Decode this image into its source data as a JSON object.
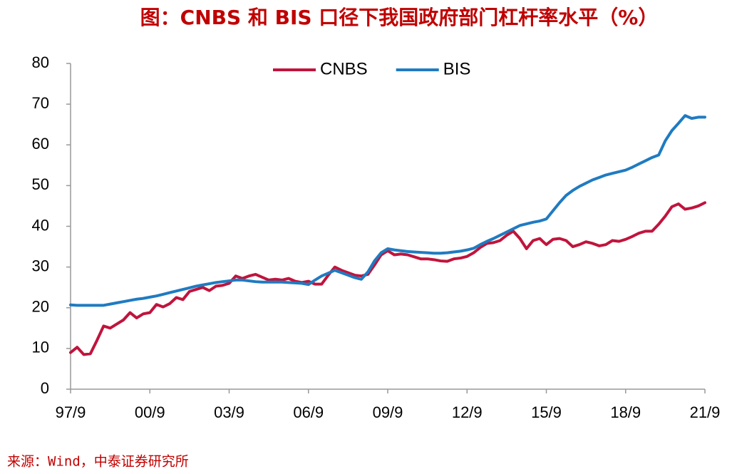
{
  "chart_data": {
    "type": "line",
    "title": "图：CNBS 和 BIS 口径下我国政府部门杠杆率水平（%）",
    "source": "来源：Wind，中泰证券研究所",
    "categories": [
      "97/9",
      null,
      null,
      null,
      null,
      null,
      null,
      null,
      null,
      null,
      null,
      null,
      "00/9",
      null,
      null,
      null,
      null,
      null,
      null,
      null,
      null,
      null,
      null,
      null,
      "03/9",
      null,
      null,
      null,
      null,
      null,
      null,
      null,
      null,
      null,
      null,
      null,
      "06/9",
      null,
      null,
      null,
      null,
      null,
      null,
      null,
      null,
      null,
      null,
      null,
      "09/9",
      null,
      null,
      null,
      null,
      null,
      null,
      null,
      null,
      null,
      null,
      null,
      "12/9",
      null,
      null,
      null,
      null,
      null,
      null,
      null,
      null,
      null,
      null,
      null,
      "15/9",
      null,
      null,
      null,
      null,
      null,
      null,
      null,
      null,
      null,
      null,
      null,
      "18/9",
      null,
      null,
      null,
      null,
      null,
      null,
      null,
      null,
      null,
      null,
      null,
      "21/9"
    ],
    "series": [
      {
        "name": "CNBS",
        "color": "#c0143c",
        "values": [
          9.0,
          10.3,
          8.5,
          8.7,
          12.0,
          15.5,
          15.0,
          16.0,
          17.0,
          18.8,
          17.5,
          18.5,
          18.8,
          20.8,
          20.2,
          21.0,
          22.5,
          22.0,
          24.0,
          24.5,
          25.0,
          24.2,
          25.3,
          25.5,
          26.0,
          27.8,
          27.2,
          27.8,
          28.2,
          27.5,
          26.8,
          27.0,
          26.8,
          27.2,
          26.5,
          26.2,
          26.5,
          25.8,
          25.8,
          28.0,
          30.0,
          29.2,
          28.6,
          28.0,
          27.8,
          28.2,
          30.5,
          33.0,
          34.0,
          33.0,
          33.2,
          33.0,
          32.5,
          32.0,
          32.0,
          31.8,
          31.5,
          31.4,
          32.0,
          32.2,
          32.6,
          33.5,
          34.8,
          35.8,
          36.0,
          36.5,
          37.8,
          38.8,
          37.0,
          34.5,
          36.5,
          37.0,
          35.5,
          36.8,
          37.0,
          36.5,
          35.0,
          35.5,
          36.2,
          35.8,
          35.2,
          35.5,
          36.5,
          36.3,
          36.8,
          37.5,
          38.3,
          38.8,
          38.8,
          40.5,
          42.5,
          44.8,
          45.5,
          44.2,
          44.5,
          45.0,
          45.8
        ]
      },
      {
        "name": "BIS",
        "color": "#1f7bc1",
        "values": [
          20.7,
          20.6,
          20.6,
          20.6,
          20.6,
          20.6,
          20.9,
          21.2,
          21.5,
          21.8,
          22.1,
          22.3,
          22.6,
          22.9,
          23.3,
          23.7,
          24.1,
          24.5,
          24.9,
          25.3,
          25.6,
          25.9,
          26.2,
          26.4,
          26.6,
          26.8,
          26.8,
          26.6,
          26.4,
          26.3,
          26.3,
          26.3,
          26.3,
          26.2,
          26.1,
          26.0,
          25.7,
          26.8,
          27.8,
          28.5,
          29.2,
          28.6,
          28.0,
          27.4,
          27.0,
          28.8,
          31.5,
          33.5,
          34.5,
          34.2,
          34.0,
          33.8,
          33.7,
          33.6,
          33.5,
          33.4,
          33.4,
          33.5,
          33.7,
          33.9,
          34.2,
          34.6,
          35.5,
          36.3,
          37.0,
          37.8,
          38.6,
          39.4,
          40.2,
          40.6,
          41.0,
          41.3,
          41.8,
          43.8,
          45.8,
          47.6,
          48.8,
          49.8,
          50.6,
          51.4,
          52.0,
          52.6,
          53.0,
          53.4,
          53.8,
          54.5,
          55.3,
          56.1,
          56.9,
          57.5,
          61.0,
          63.5,
          65.3,
          67.2,
          66.5,
          66.8,
          66.8
        ]
      }
    ],
    "ylim": [
      0,
      80
    ],
    "yticks": [
      0,
      10,
      20,
      30,
      40,
      50,
      60,
      70,
      80
    ],
    "grid": false,
    "legend": "top"
  }
}
